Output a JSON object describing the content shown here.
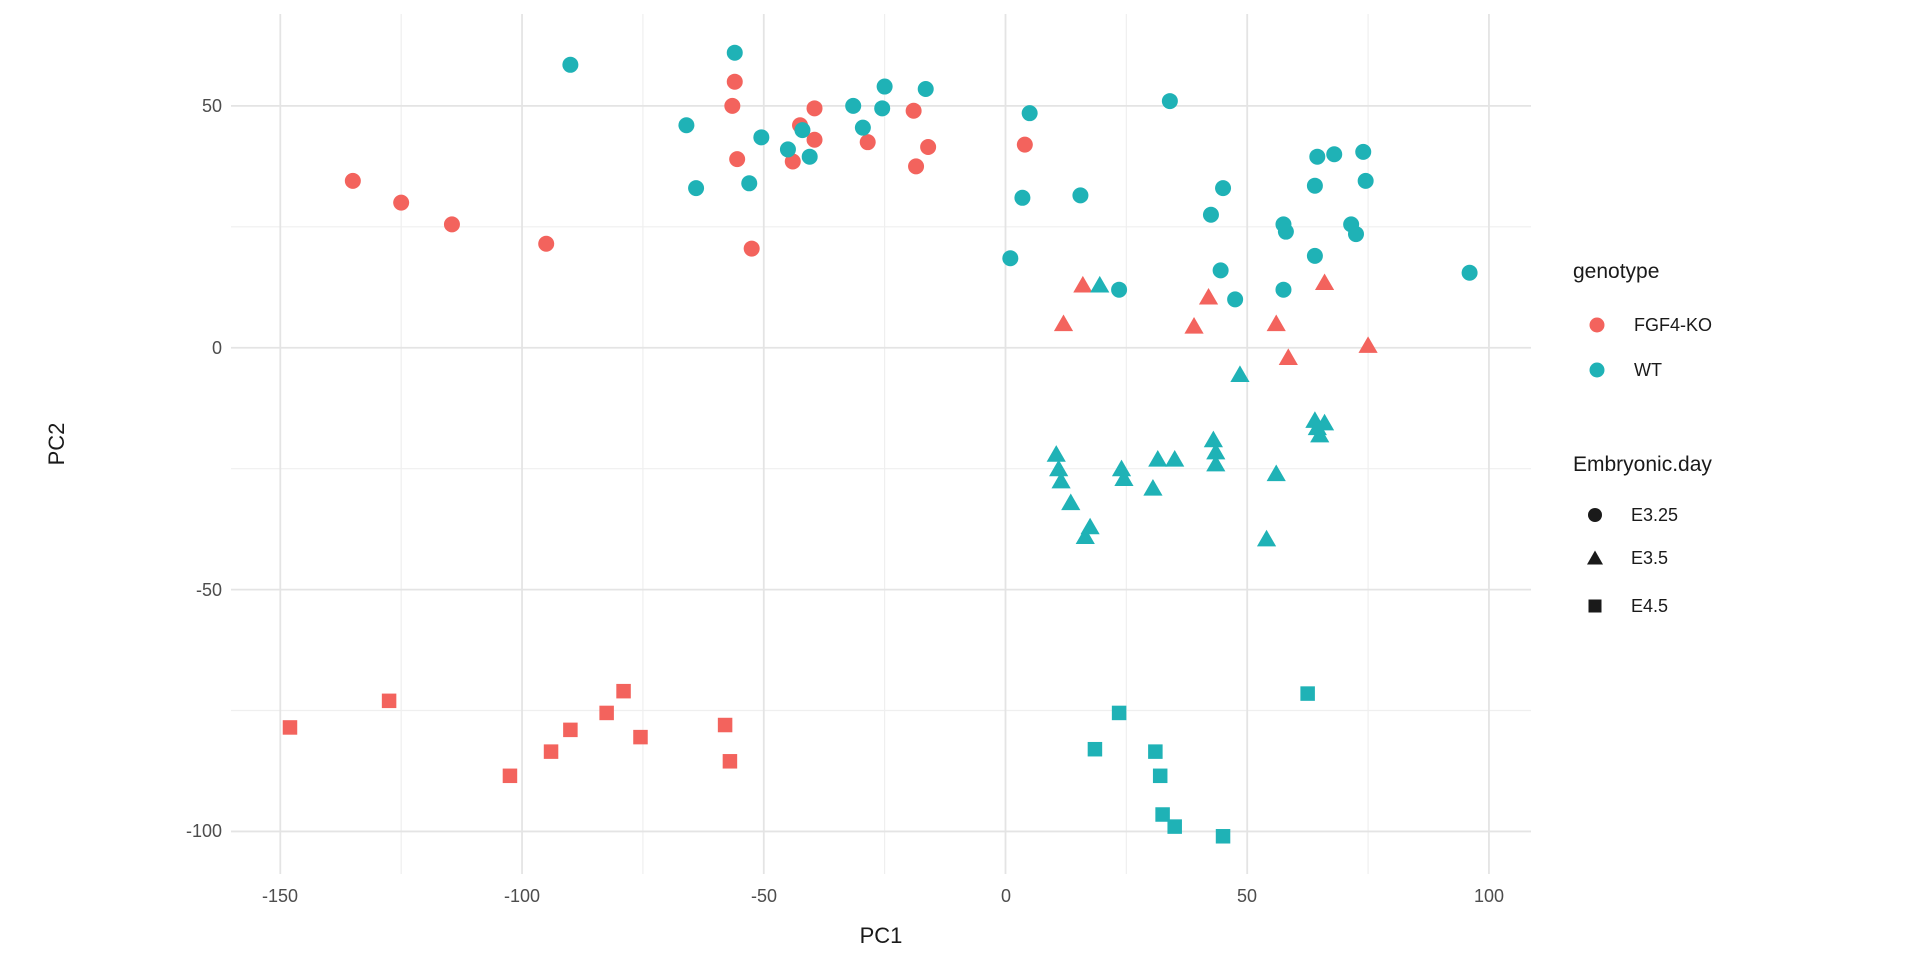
{
  "figure": {
    "background_color": "#ffffff",
    "grid_major_color": "#e4e4e4",
    "grid_minor_color": "#efefef",
    "tick_label_color": "#4d4d4d",
    "axis_title_color": "#1a1a1a",
    "accent_red": "#f3635d",
    "accent_teal": "#1fb2b6"
  },
  "chart_data": {
    "type": "scatter",
    "title": "",
    "xlabel": "PC1",
    "ylabel": "PC2",
    "xlim": [
      -160.2,
      108.7
    ],
    "ylim": [
      -108.8,
      69.0
    ],
    "x_ticks": [
      -150,
      -100,
      -50,
      0,
      50,
      100
    ],
    "y_ticks": [
      50,
      0,
      -50,
      -100
    ],
    "x_minor_ticks": [
      -125,
      -75,
      -25,
      25,
      75
    ],
    "y_minor_ticks": [
      25,
      -25,
      -75
    ],
    "grid": true,
    "legend_position": "right",
    "legends": [
      {
        "title": "genotype",
        "entries": [
          {
            "label": "FGF4-KO",
            "color": "#f3635d",
            "shape": "circle"
          },
          {
            "label": "WT",
            "color": "#1fb2b6",
            "shape": "circle"
          }
        ]
      },
      {
        "title": "Embryonic.day",
        "entries": [
          {
            "label": "E3.25",
            "color": "#1a1a1a",
            "shape": "circle"
          },
          {
            "label": "E3.5",
            "color": "#1a1a1a",
            "shape": "triangle"
          },
          {
            "label": "E4.5",
            "color": "#1a1a1a",
            "shape": "square"
          }
        ]
      }
    ],
    "series": [
      {
        "name": "FGF4-KO E3.25",
        "genotype": "FGF4-KO",
        "embryonic_day": "E3.25",
        "shape": "circle",
        "color": "#f3635d",
        "points": [
          [
            -135,
            34.5
          ],
          [
            -125,
            30
          ],
          [
            -114.5,
            25.5
          ],
          [
            -95,
            21.5
          ],
          [
            -56.5,
            50
          ],
          [
            -56,
            55
          ],
          [
            -55.5,
            39
          ],
          [
            -52.5,
            20.5
          ],
          [
            -44,
            38.5
          ],
          [
            -42.5,
            46
          ],
          [
            -39.5,
            49.5
          ],
          [
            -39.5,
            43
          ],
          [
            -28.5,
            42.5
          ],
          [
            -19,
            49
          ],
          [
            -18.5,
            37.5
          ],
          [
            -16,
            41.5
          ],
          [
            4,
            42
          ]
        ]
      },
      {
        "name": "FGF4-KO E3.5",
        "genotype": "FGF4-KO",
        "embryonic_day": "E3.5",
        "shape": "triangle",
        "color": "#f3635d",
        "points": [
          [
            12,
            5
          ],
          [
            16,
            13
          ],
          [
            39,
            4.5
          ],
          [
            42,
            10.5
          ],
          [
            56,
            5
          ],
          [
            58.5,
            -2
          ],
          [
            66,
            13.5
          ],
          [
            75,
            0.5
          ]
        ]
      },
      {
        "name": "FGF4-KO E4.5",
        "genotype": "FGF4-KO",
        "embryonic_day": "E4.5",
        "shape": "square",
        "color": "#f3635d",
        "points": [
          [
            -148,
            -78.5
          ],
          [
            -127.5,
            -73
          ],
          [
            -102.5,
            -88.5
          ],
          [
            -94,
            -83.5
          ],
          [
            -90,
            -79
          ],
          [
            -82.5,
            -75.5
          ],
          [
            -79,
            -71
          ],
          [
            -75.5,
            -80.5
          ],
          [
            -58,
            -78
          ],
          [
            -57,
            -85.5
          ]
        ]
      },
      {
        "name": "WT E3.25",
        "genotype": "WT",
        "embryonic_day": "E3.25",
        "shape": "circle",
        "color": "#1fb2b6",
        "points": [
          [
            -90,
            58.5
          ],
          [
            -66,
            46
          ],
          [
            -64,
            33
          ],
          [
            -56,
            61
          ],
          [
            -53,
            34
          ],
          [
            -50.5,
            43.5
          ],
          [
            -45,
            41
          ],
          [
            -42,
            45
          ],
          [
            -40.5,
            39.5
          ],
          [
            -31.5,
            50
          ],
          [
            -29.5,
            45.5
          ],
          [
            -25.5,
            49.5
          ],
          [
            -25,
            54
          ],
          [
            -16.5,
            53.5
          ],
          [
            1,
            18.5
          ],
          [
            3.5,
            31
          ],
          [
            5,
            48.5
          ],
          [
            15.5,
            31.5
          ],
          [
            23.5,
            12
          ],
          [
            34,
            51
          ],
          [
            42.5,
            27.5
          ],
          [
            44.5,
            16
          ],
          [
            45,
            33
          ],
          [
            47.5,
            10
          ],
          [
            57.5,
            25.5
          ],
          [
            58,
            24
          ],
          [
            57.5,
            12
          ],
          [
            64,
            19
          ],
          [
            64,
            33.5
          ],
          [
            64.5,
            39.5
          ],
          [
            68,
            40
          ],
          [
            71.5,
            25.5
          ],
          [
            72.5,
            23.5
          ],
          [
            74,
            40.5
          ],
          [
            74.5,
            34.5
          ],
          [
            96,
            15.5
          ]
        ]
      },
      {
        "name": "WT E3.5",
        "genotype": "WT",
        "embryonic_day": "E3.5",
        "shape": "triangle",
        "color": "#1fb2b6",
        "points": [
          [
            19.5,
            13
          ],
          [
            48.5,
            -5.5
          ],
          [
            10.5,
            -22
          ],
          [
            11,
            -25
          ],
          [
            11.5,
            -27.5
          ],
          [
            13.5,
            -32
          ],
          [
            16.5,
            -39
          ],
          [
            17.5,
            -37
          ],
          [
            24,
            -25
          ],
          [
            24.5,
            -27
          ],
          [
            30.5,
            -29
          ],
          [
            31.5,
            -23
          ],
          [
            35,
            -23
          ],
          [
            43,
            -19
          ],
          [
            43.5,
            -21.5
          ],
          [
            43.5,
            -24
          ],
          [
            54,
            -39.5
          ],
          [
            56,
            -26
          ],
          [
            64,
            -15
          ],
          [
            64.5,
            -16.5
          ],
          [
            65,
            -18
          ],
          [
            66,
            -15.5
          ]
        ]
      },
      {
        "name": "WT E4.5",
        "genotype": "WT",
        "embryonic_day": "E4.5",
        "shape": "square",
        "color": "#1fb2b6",
        "points": [
          [
            18.5,
            -83
          ],
          [
            23.5,
            -75.5
          ],
          [
            31,
            -83.5
          ],
          [
            32,
            -88.5
          ],
          [
            32.5,
            -96.5
          ],
          [
            35,
            -99
          ],
          [
            45,
            -101
          ],
          [
            62.5,
            -71.5
          ]
        ]
      }
    ]
  }
}
